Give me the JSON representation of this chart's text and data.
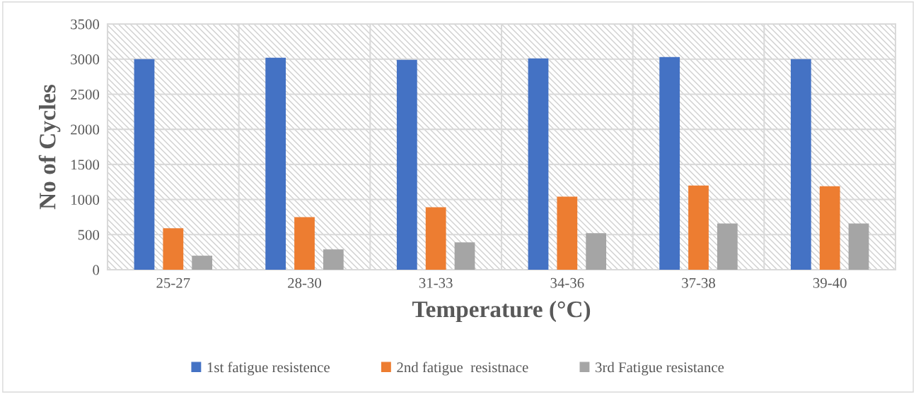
{
  "chart_data": {
    "type": "bar",
    "xlabel": "Temperature (°C)",
    "ylabel": "No of Cycles",
    "categories": [
      "25-27",
      "28-30",
      "31-33",
      "34-36",
      "37-38",
      "39-40"
    ],
    "series": [
      {
        "name": "1st fatigue resistence",
        "color": "#4472c4",
        "values": [
          3000,
          3020,
          2990,
          3010,
          3030,
          3000
        ]
      },
      {
        "name": "2nd fatigue  resistnace",
        "color": "#ed7d31",
        "values": [
          590,
          750,
          890,
          1040,
          1200,
          1190
        ]
      },
      {
        "name": "3rd Fatigue resistance",
        "color": "#a5a5a5",
        "values": [
          200,
          290,
          390,
          520,
          660,
          660
        ]
      }
    ],
    "ylim": [
      0,
      3500
    ],
    "yticks": [
      0,
      500,
      1000,
      1500,
      2000,
      2500,
      3000,
      3500
    ],
    "grid": true,
    "legend": "bottom"
  }
}
